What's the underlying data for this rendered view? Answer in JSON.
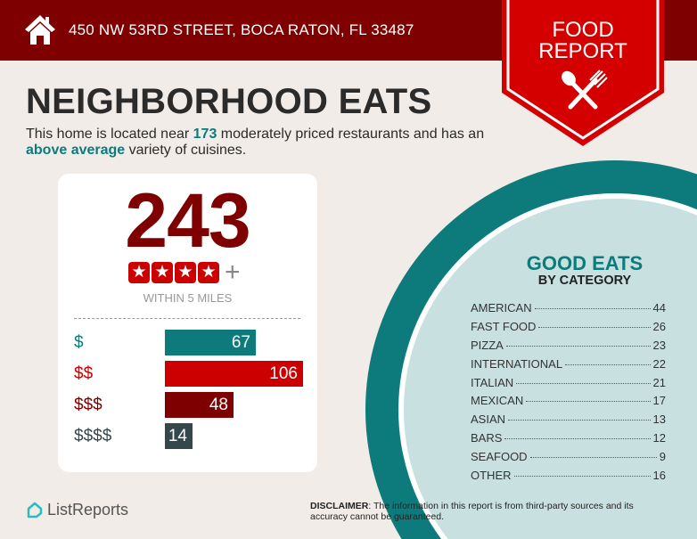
{
  "header": {
    "address": "450 NW 53RD STREET, BOCA RATON, FL 33487",
    "icon": "home-icon"
  },
  "badge": {
    "line1": "FOOD",
    "line2": "REPORT",
    "icon": "utensils-icon",
    "color": "#d40000"
  },
  "title": "NEIGHBORHOOD EATS",
  "intro": {
    "pre": "This home is located near ",
    "count": "173",
    "mid": " moderately priced restaurants and has an ",
    "variety": "above average",
    "post": " variety of cuisines."
  },
  "summary": {
    "count": "243",
    "rating_stars": 4,
    "rating_plus": "+",
    "within": "WITHIN 5 MILES"
  },
  "chart_data": {
    "type": "bar",
    "categories": [
      "$",
      "$$",
      "$$$",
      "$$$$"
    ],
    "values": [
      67,
      106,
      48,
      14
    ],
    "colors": [
      "#0d7b7b",
      "#cc0000",
      "#7f0000",
      "#34474b"
    ]
  },
  "categories": {
    "title": "GOOD EATS",
    "subtitle": "BY CATEGORY",
    "items": [
      {
        "name": "AMERICAN",
        "count": "44"
      },
      {
        "name": "FAST FOOD",
        "count": "26"
      },
      {
        "name": "PIZZA",
        "count": "23"
      },
      {
        "name": "INTERNATIONAL",
        "count": "22"
      },
      {
        "name": "ITALIAN",
        "count": "21"
      },
      {
        "name": "MEXICAN",
        "count": "17"
      },
      {
        "name": "ASIAN",
        "count": "13"
      },
      {
        "name": "BARS",
        "count": "12"
      },
      {
        "name": "SEAFOOD",
        "count": "9"
      },
      {
        "name": "OTHER",
        "count": "16"
      }
    ]
  },
  "footer": {
    "logo": "ListReports",
    "disclaimer_label": "DISCLAIMER",
    "disclaimer": ": The information in this report is from third-party sources and its accuracy cannot be guaranteed."
  }
}
